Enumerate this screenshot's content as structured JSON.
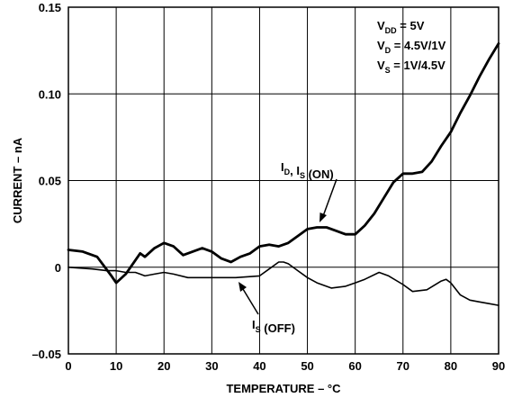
{
  "chart_data": {
    "type": "line",
    "xlabel": "TEMPERATURE – °C",
    "ylabel": "CURRENT – nA",
    "xlim": [
      0,
      90
    ],
    "ylim": [
      -0.05,
      0.15
    ],
    "x_ticks": [
      "0",
      "10",
      "20",
      "30",
      "40",
      "50",
      "60",
      "70",
      "80",
      "90"
    ],
    "y_ticks": [
      "–0.05",
      "0",
      "0.05",
      "0.10",
      "0.15"
    ],
    "grid": true,
    "conditions": [
      {
        "main": "V",
        "sub": "DD",
        "rest": " = 5V"
      },
      {
        "main": "V",
        "sub": "D",
        "rest": " = 4.5V/1V"
      },
      {
        "main": "V",
        "sub": "S",
        "rest": " = 1V/4.5V"
      }
    ],
    "series": [
      {
        "name": "ID, IS (ON)",
        "label_parts": [
          {
            "main": "I",
            "sub": "D"
          },
          {
            "main": ", I",
            "sub": "S"
          },
          {
            "main": " (ON)",
            "sub": ""
          }
        ],
        "x": [
          0,
          3,
          6,
          9,
          10,
          12,
          14,
          15,
          16,
          18,
          20,
          22,
          24,
          26,
          28,
          30,
          32,
          34,
          36,
          38,
          40,
          42,
          44,
          46,
          48,
          50,
          52,
          54,
          56,
          58,
          60,
          62,
          64,
          66,
          68,
          70,
          72,
          74,
          76,
          78,
          80,
          82,
          84,
          86,
          88,
          90
        ],
        "y": [
          0.01,
          0.009,
          0.006,
          -0.005,
          -0.009,
          -0.004,
          0.004,
          0.008,
          0.006,
          0.011,
          0.014,
          0.012,
          0.007,
          0.009,
          0.011,
          0.009,
          0.005,
          0.003,
          0.006,
          0.008,
          0.012,
          0.013,
          0.012,
          0.014,
          0.018,
          0.022,
          0.023,
          0.023,
          0.021,
          0.019,
          0.019,
          0.024,
          0.031,
          0.04,
          0.049,
          0.054,
          0.054,
          0.055,
          0.061,
          0.07,
          0.078,
          0.089,
          0.099,
          0.11,
          0.12,
          0.129
        ]
      },
      {
        "name": "IS (OFF)",
        "label_parts": [
          {
            "main": "I",
            "sub": "S"
          },
          {
            "main": " (OFF)",
            "sub": ""
          }
        ],
        "x": [
          0,
          5,
          8,
          10,
          12,
          14,
          15,
          16,
          18,
          20,
          22,
          25,
          30,
          35,
          40,
          42,
          44,
          45,
          46,
          48,
          50,
          52,
          55,
          58,
          60,
          62,
          65,
          67,
          70,
          72,
          75,
          78,
          79,
          80,
          82,
          84,
          86,
          88,
          90
        ],
        "y": [
          0.0,
          -0.001,
          -0.002,
          -0.002,
          -0.003,
          -0.003,
          -0.004,
          -0.005,
          -0.004,
          -0.003,
          -0.004,
          -0.006,
          -0.006,
          -0.006,
          -0.005,
          -0.001,
          0.003,
          0.003,
          0.002,
          -0.002,
          -0.006,
          -0.009,
          -0.012,
          -0.011,
          -0.009,
          -0.007,
          -0.003,
          -0.005,
          -0.01,
          -0.014,
          -0.013,
          -0.008,
          -0.007,
          -0.009,
          -0.016,
          -0.019,
          -0.02,
          -0.021,
          -0.022
        ]
      }
    ]
  }
}
